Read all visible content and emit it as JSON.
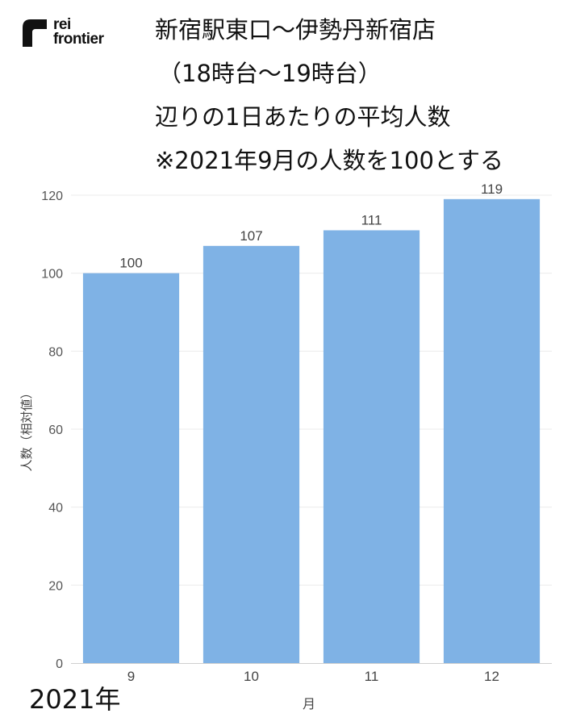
{
  "brand": {
    "line1": "rei",
    "line2": "frontier"
  },
  "title_lines": [
    "新宿駅東口〜伊勢丹新宿店",
    "（18時台〜19時台）",
    "辺りの1日あたりの平均人数",
    "※2021年9月の人数を100とする"
  ],
  "footer_year": "2021年",
  "chart_data": {
    "type": "bar",
    "categories": [
      "9",
      "10",
      "11",
      "12"
    ],
    "values": [
      100,
      107,
      111,
      119
    ],
    "data_labels": [
      "100",
      "107",
      "111",
      "119"
    ],
    "xlabel": "月",
    "ylabel": "人数（相対値）",
    "ylim": [
      0,
      120
    ],
    "yticks": [
      0,
      20,
      40,
      60,
      80,
      100,
      120
    ],
    "bar_color": "#7fb2e5",
    "grid": true,
    "legend": "none"
  }
}
